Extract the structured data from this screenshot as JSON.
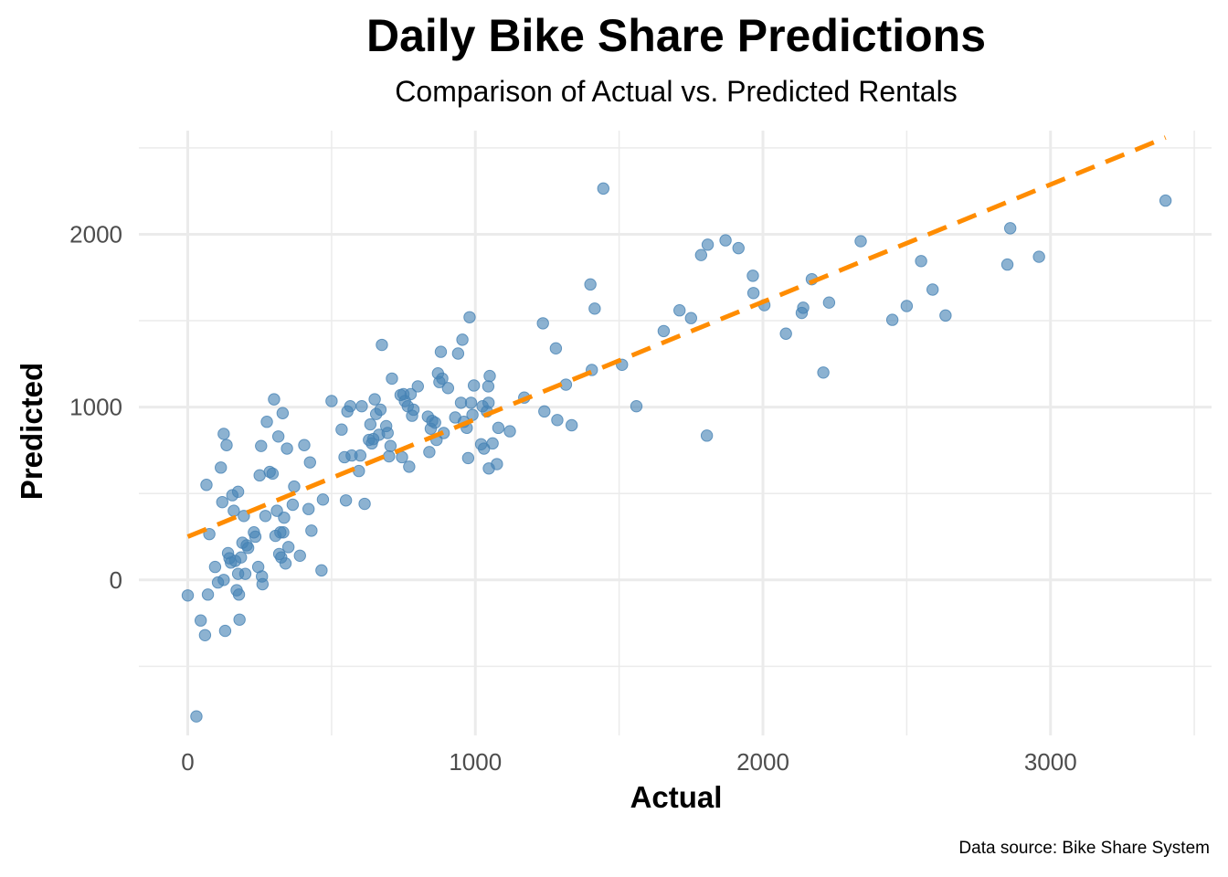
{
  "chart_data": {
    "type": "scatter",
    "title": "Daily Bike Share Predictions",
    "subtitle": "Comparison of Actual vs. Predicted Rentals",
    "xlabel": "Actual",
    "ylabel": "Predicted",
    "caption": "Data source: Bike Share System",
    "xlim": [
      -170,
      3560
    ],
    "ylim": [
      -900,
      2600
    ],
    "x_ticks": [
      0,
      1000,
      2000,
      3000
    ],
    "y_ticks": [
      0,
      1000,
      2000
    ],
    "x_minor": [
      500,
      1500,
      2500,
      3500
    ],
    "y_minor": [
      -500,
      500,
      1500,
      2500
    ],
    "trend_line": {
      "x": [
        0,
        3400
      ],
      "y": [
        250,
        2560
      ],
      "style": "dashed"
    },
    "colors": {
      "points": "#4682b4",
      "trend": "#ff8c00",
      "grid": "#ebebeb"
    },
    "points": [
      [
        0,
        -90
      ],
      [
        30,
        -790
      ],
      [
        45,
        -235
      ],
      [
        60,
        -320
      ],
      [
        65,
        550
      ],
      [
        70,
        -85
      ],
      [
        75,
        265
      ],
      [
        95,
        75
      ],
      [
        105,
        -15
      ],
      [
        115,
        650
      ],
      [
        120,
        450
      ],
      [
        125,
        0
      ],
      [
        125,
        845
      ],
      [
        130,
        -295
      ],
      [
        135,
        780
      ],
      [
        140,
        155
      ],
      [
        145,
        125
      ],
      [
        150,
        100
      ],
      [
        155,
        490
      ],
      [
        160,
        400
      ],
      [
        165,
        110
      ],
      [
        170,
        -60
      ],
      [
        175,
        35
      ],
      [
        175,
        510
      ],
      [
        178,
        -85
      ],
      [
        180,
        -230
      ],
      [
        185,
        130
      ],
      [
        190,
        215
      ],
      [
        195,
        370
      ],
      [
        200,
        35
      ],
      [
        205,
        200
      ],
      [
        210,
        185
      ],
      [
        230,
        275
      ],
      [
        235,
        250
      ],
      [
        245,
        75
      ],
      [
        250,
        605
      ],
      [
        255,
        775
      ],
      [
        258,
        20
      ],
      [
        260,
        -25
      ],
      [
        270,
        370
      ],
      [
        275,
        915
      ],
      [
        285,
        625
      ],
      [
        295,
        615
      ],
      [
        300,
        1045
      ],
      [
        305,
        255
      ],
      [
        310,
        400
      ],
      [
        315,
        830
      ],
      [
        318,
        150
      ],
      [
        322,
        275
      ],
      [
        325,
        130
      ],
      [
        330,
        965
      ],
      [
        332,
        275
      ],
      [
        335,
        360
      ],
      [
        340,
        95
      ],
      [
        345,
        760
      ],
      [
        350,
        190
      ],
      [
        365,
        435
      ],
      [
        370,
        540
      ],
      [
        390,
        140
      ],
      [
        405,
        780
      ],
      [
        420,
        410
      ],
      [
        425,
        680
      ],
      [
        430,
        285
      ],
      [
        465,
        55
      ],
      [
        470,
        465
      ],
      [
        500,
        1035
      ],
      [
        535,
        870
      ],
      [
        545,
        710
      ],
      [
        550,
        460
      ],
      [
        555,
        975
      ],
      [
        565,
        1005
      ],
      [
        570,
        720
      ],
      [
        595,
        630
      ],
      [
        600,
        720
      ],
      [
        605,
        1005
      ],
      [
        615,
        440
      ],
      [
        630,
        810
      ],
      [
        635,
        900
      ],
      [
        640,
        790
      ],
      [
        645,
        815
      ],
      [
        650,
        1045
      ],
      [
        655,
        960
      ],
      [
        665,
        840
      ],
      [
        670,
        985
      ],
      [
        675,
        1360
      ],
      [
        690,
        890
      ],
      [
        695,
        850
      ],
      [
        700,
        715
      ],
      [
        705,
        775
      ],
      [
        710,
        1165
      ],
      [
        740,
        1070
      ],
      [
        745,
        710
      ],
      [
        750,
        1075
      ],
      [
        755,
        1035
      ],
      [
        765,
        1005
      ],
      [
        770,
        655
      ],
      [
        775,
        1075
      ],
      [
        780,
        950
      ],
      [
        785,
        985
      ],
      [
        800,
        1120
      ],
      [
        835,
        945
      ],
      [
        840,
        740
      ],
      [
        845,
        875
      ],
      [
        850,
        920
      ],
      [
        860,
        910
      ],
      [
        865,
        810
      ],
      [
        870,
        1195
      ],
      [
        875,
        1145
      ],
      [
        880,
        1320
      ],
      [
        885,
        1165
      ],
      [
        890,
        850
      ],
      [
        905,
        1110
      ],
      [
        930,
        940
      ],
      [
        940,
        1310
      ],
      [
        950,
        1025
      ],
      [
        955,
        1390
      ],
      [
        960,
        915
      ],
      [
        970,
        880
      ],
      [
        975,
        705
      ],
      [
        980,
        1520
      ],
      [
        985,
        1025
      ],
      [
        990,
        955
      ],
      [
        995,
        1125
      ],
      [
        1020,
        785
      ],
      [
        1025,
        1005
      ],
      [
        1030,
        760
      ],
      [
        1040,
        975
      ],
      [
        1045,
        1120
      ],
      [
        1046,
        1025
      ],
      [
        1047,
        645
      ],
      [
        1050,
        1180
      ],
      [
        1060,
        790
      ],
      [
        1075,
        670
      ],
      [
        1080,
        880
      ],
      [
        1120,
        860
      ],
      [
        1170,
        1055
      ],
      [
        1235,
        1485
      ],
      [
        1240,
        975
      ],
      [
        1280,
        1340
      ],
      [
        1285,
        925
      ],
      [
        1315,
        1130
      ],
      [
        1335,
        895
      ],
      [
        1400,
        1710
      ],
      [
        1405,
        1215
      ],
      [
        1415,
        1570
      ],
      [
        1445,
        2265
      ],
      [
        1510,
        1245
      ],
      [
        1560,
        1005
      ],
      [
        1655,
        1440
      ],
      [
        1710,
        1560
      ],
      [
        1750,
        1515
      ],
      [
        1785,
        1880
      ],
      [
        1805,
        835
      ],
      [
        1808,
        1940
      ],
      [
        1870,
        1965
      ],
      [
        1915,
        1920
      ],
      [
        1965,
        1760
      ],
      [
        1967,
        1660
      ],
      [
        2005,
        1590
      ],
      [
        2080,
        1425
      ],
      [
        2135,
        1545
      ],
      [
        2140,
        1575
      ],
      [
        2170,
        1740
      ],
      [
        2210,
        1200
      ],
      [
        2230,
        1605
      ],
      [
        2340,
        1960
      ],
      [
        2450,
        1505
      ],
      [
        2500,
        1585
      ],
      [
        2550,
        1845
      ],
      [
        2590,
        1680
      ],
      [
        2635,
        1530
      ],
      [
        2850,
        1825
      ],
      [
        2860,
        2035
      ],
      [
        2960,
        1870
      ],
      [
        3400,
        2195
      ]
    ]
  }
}
